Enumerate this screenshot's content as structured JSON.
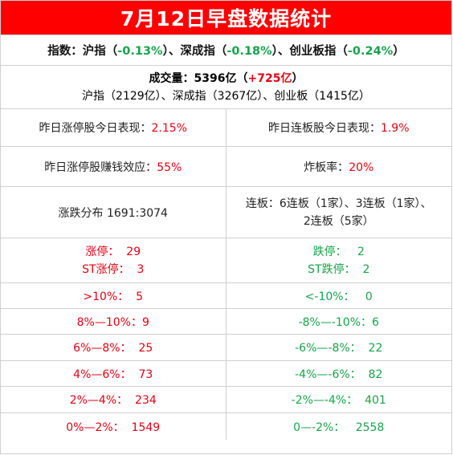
{
  "title": "7月12日早盘数据统计",
  "index": {
    "label": "指数：",
    "sh_name": "沪指（",
    "sh_val": "-0.13%",
    "sh_end": "）、",
    "sz_name": "深成指（",
    "sz_val": "-0.18%",
    "sz_end": "）、",
    "cy_name": "创业板指（",
    "cy_val": "-0.24%",
    "cy_end": "）"
  },
  "volume": {
    "label": "成交量：5396亿（",
    "change": "+725亿",
    "end": "）",
    "detail": "沪指（2129亿）、深成指（3267亿）、创业板（1415亿）"
  },
  "stats": {
    "yesterday_limitup_label": "昨日涨停股今日表现：",
    "yesterday_limitup_val": "2.15%",
    "yesterday_consec_label": "昨日连板股今日表现：",
    "yesterday_consec_val": "1.9%",
    "profit_effect_label": "昨日涨停股赚钱效应：",
    "profit_effect_val": "55%",
    "break_rate_label": "炸板率：",
    "break_rate_val": "20%",
    "distribution": "涨跌分布 1691:3074",
    "consec_line1": "连板：6连板（1家）、3连板（1家）、",
    "consec_line2": "2连板（5家）"
  },
  "limit": {
    "up": "涨停：  29",
    "st_up": "ST涨停：  3",
    "down": "跌停：   2",
    "st_down": "ST跌停：  2"
  },
  "ranges": [
    {
      "up": ">10%：  5",
      "down": "<-10%：   0"
    },
    {
      "up": "8%—10%：9",
      "down": "-8%—-10%：6"
    },
    {
      "up": "6%—8%：  25",
      "down": "-6%—-8%：  22"
    },
    {
      "up": "4%—6%：  73",
      "down": "-4%—-6%：  82"
    },
    {
      "up": "2%—4%：  234",
      "down": "-2%—-4%：  401"
    },
    {
      "up": "0%—2%：  1549",
      "down": "0—-2%：   2558"
    }
  ],
  "colors": {
    "title_bg": "#ff0000",
    "up": "#e60012",
    "down": "#17a34a"
  }
}
